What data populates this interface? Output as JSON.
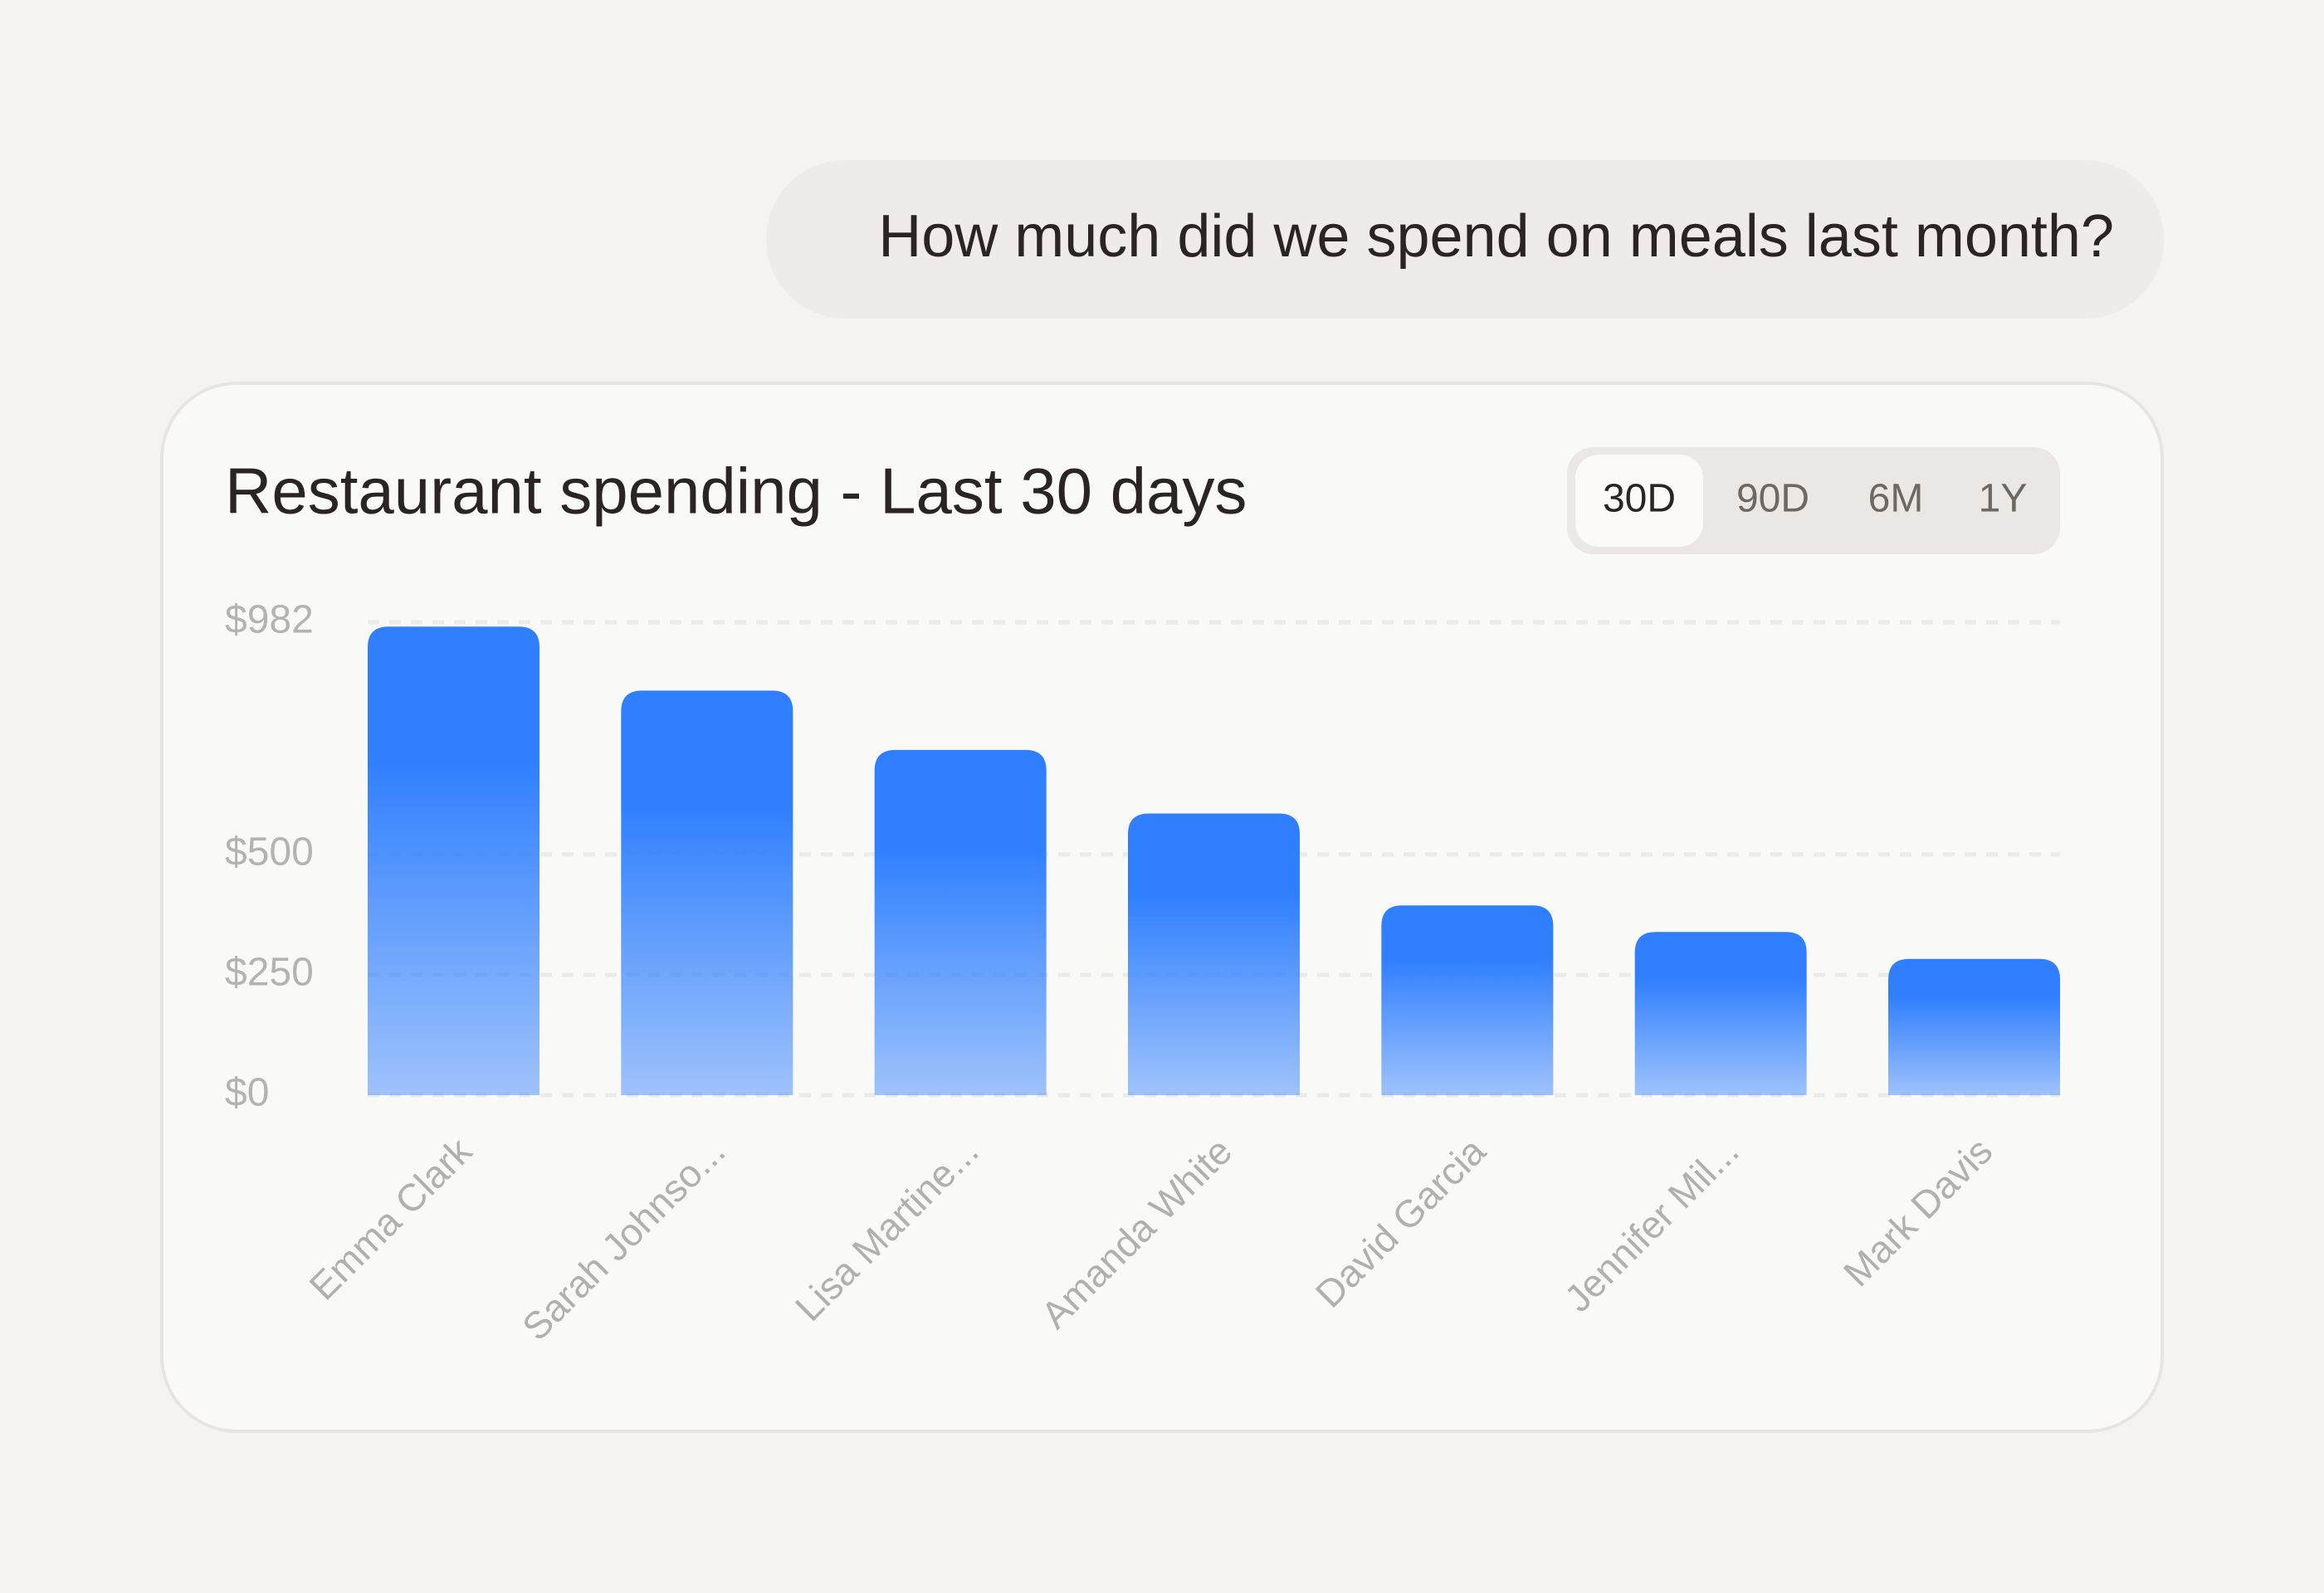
{
  "question": "How much did we spend on meals last month?",
  "chart_data": {
    "type": "bar",
    "title": "Restaurant spending - Last 30 days",
    "range_options": [
      "30D",
      "90D",
      "6M",
      "1Y"
    ],
    "selected_range": "30D",
    "categories": [
      "Emma Clark",
      "Sarah Johnso...",
      "Lisa Martine...",
      "Amanda White",
      "David Garcia",
      "Jennifer Mil...",
      "Mark Davis"
    ],
    "values": [
      973,
      840,
      717,
      585,
      394,
      339,
      283
    ],
    "color": "#2f7fff",
    "ylim": [
      0,
      982
    ],
    "yticks": [
      {
        "value": 0,
        "label": "$0"
      },
      {
        "value": 250,
        "label": "$250"
      },
      {
        "value": 500,
        "label": "$500"
      },
      {
        "value": 982,
        "label": "$982"
      }
    ],
    "grid": true
  }
}
